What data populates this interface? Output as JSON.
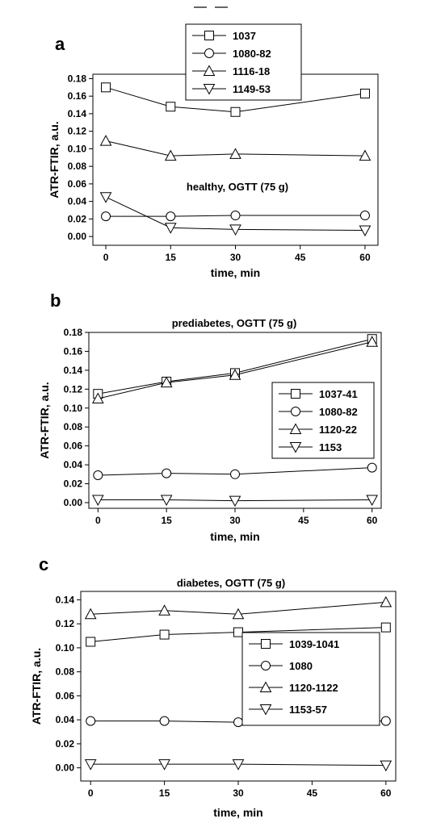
{
  "chart_data": [
    {
      "panel": "a",
      "type": "line",
      "annotation": "healthy, OGTT (75 g)",
      "xlabel": "time, min",
      "ylabel": "ATR-FTIR, a.u.",
      "x_ticks": [
        0,
        15,
        30,
        45,
        60
      ],
      "y_ticks": [
        "0.00",
        "0.02",
        "0.04",
        "0.06",
        "0.08",
        "0.10",
        "0.12",
        "0.14",
        "0.16",
        "0.18"
      ],
      "xlim": [
        -3,
        63
      ],
      "ylim": [
        -0.01,
        0.185
      ],
      "legend_position": "top-center",
      "series": [
        {
          "name": "1037",
          "marker": "square",
          "x": [
            0,
            15,
            30,
            60
          ],
          "values": [
            0.17,
            0.148,
            0.142,
            0.163
          ]
        },
        {
          "name": "1080-82",
          "marker": "circle",
          "x": [
            0,
            15,
            30,
            60
          ],
          "values": [
            0.023,
            0.023,
            0.024,
            0.024
          ]
        },
        {
          "name": "1116-18",
          "marker": "triangle-up",
          "x": [
            0,
            15,
            30,
            60
          ],
          "values": [
            0.109,
            0.092,
            0.094,
            0.092
          ]
        },
        {
          "name": "1149-53",
          "marker": "triangle-down",
          "x": [
            0,
            15,
            30,
            60
          ],
          "values": [
            0.045,
            0.01,
            0.008,
            0.007
          ]
        }
      ]
    },
    {
      "panel": "b",
      "type": "line",
      "annotation": "prediabetes, OGTT (75 g)",
      "xlabel": "time, min",
      "ylabel": "ATR-FTIR, a.u.",
      "x_ticks": [
        0,
        15,
        30,
        45,
        60
      ],
      "y_ticks": [
        "0.00",
        "0.02",
        "0.04",
        "0.06",
        "0.08",
        "0.10",
        "0.12",
        "0.14",
        "0.16",
        "0.18"
      ],
      "xlim": [
        -2,
        62
      ],
      "ylim": [
        -0.006,
        0.18
      ],
      "legend_position": "right",
      "series": [
        {
          "name": "1037-41",
          "marker": "square",
          "x": [
            0,
            15,
            30,
            60
          ],
          "values": [
            0.115,
            0.128,
            0.137,
            0.173
          ]
        },
        {
          "name": "1080-82",
          "marker": "circle",
          "x": [
            0,
            15,
            30,
            60
          ],
          "values": [
            0.029,
            0.031,
            0.03,
            0.037
          ]
        },
        {
          "name": "1120-22",
          "marker": "triangle-up",
          "x": [
            0,
            15,
            30,
            60
          ],
          "values": [
            0.11,
            0.127,
            0.135,
            0.17
          ]
        },
        {
          "name": "1153",
          "marker": "triangle-down",
          "x": [
            0,
            15,
            30,
            60
          ],
          "values": [
            0.003,
            0.003,
            0.002,
            0.003
          ]
        }
      ]
    },
    {
      "panel": "c",
      "type": "line",
      "annotation": "diabetes, OGTT (75 g)",
      "xlabel": "time, min",
      "ylabel": "ATR-FTIR, a.u.",
      "x_ticks": [
        0,
        15,
        30,
        45,
        60
      ],
      "y_ticks": [
        "0.00",
        "0.02",
        "0.04",
        "0.06",
        "0.08",
        "0.10",
        "0.12",
        "0.14"
      ],
      "xlim": [
        -2,
        62
      ],
      "ylim": [
        -0.011,
        0.147
      ],
      "legend_position": "right",
      "series": [
        {
          "name": "1039-1041",
          "marker": "square",
          "x": [
            0,
            15,
            30,
            60
          ],
          "values": [
            0.105,
            0.111,
            0.113,
            0.117
          ]
        },
        {
          "name": "1080",
          "marker": "circle",
          "x": [
            0,
            15,
            30,
            60
          ],
          "values": [
            0.039,
            0.039,
            0.038,
            0.039
          ]
        },
        {
          "name": "1120-1122",
          "marker": "triangle-up",
          "x": [
            0,
            15,
            30,
            60
          ],
          "values": [
            0.128,
            0.131,
            0.128,
            0.138
          ]
        },
        {
          "name": "1153-57",
          "marker": "triangle-down",
          "x": [
            0,
            15,
            30,
            60
          ],
          "values": [
            0.003,
            0.003,
            0.003,
            0.002
          ]
        }
      ]
    }
  ]
}
